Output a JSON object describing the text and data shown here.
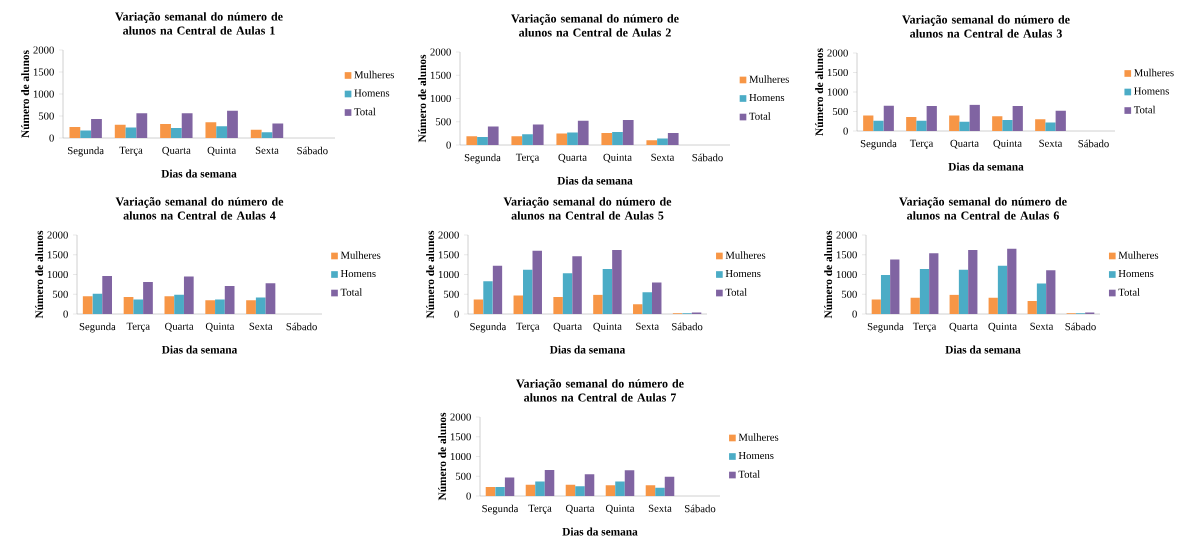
{
  "chart_data": [
    {
      "type": "bar",
      "title": "Variação semanal do número de alunos na Central de Aulas 1",
      "xlabel": "Dias da semana",
      "ylabel": "Número de alunos",
      "categories": [
        "Segunda",
        "Terça",
        "Quarta",
        "Quinta",
        "Sexta",
        "Sábado"
      ],
      "ylim": [
        0,
        2000
      ],
      "yticks": [
        0,
        500,
        1000,
        1500,
        2000
      ],
      "legend": "right",
      "series": [
        {
          "name": "Mulheres",
          "color": "#f79646",
          "values": [
            250,
            300,
            320,
            360,
            190,
            0
          ]
        },
        {
          "name": "Homens",
          "color": "#4bacc6",
          "values": [
            170,
            240,
            230,
            270,
            130,
            0
          ]
        },
        {
          "name": "Total",
          "color": "#8064a2",
          "values": [
            430,
            560,
            560,
            620,
            330,
            0
          ]
        }
      ]
    },
    {
      "type": "bar",
      "title": "Variação semanal do número de alunos na Central de Aulas 2",
      "xlabel": "Dias da semana",
      "ylabel": "Número de alunos",
      "categories": [
        "Segunda",
        "Terça",
        "Quarta",
        "Quinta",
        "Sexta",
        "Sábado"
      ],
      "ylim": [
        0,
        2000
      ],
      "yticks": [
        0,
        500,
        1000,
        1500,
        2000
      ],
      "legend": "right",
      "series": [
        {
          "name": "Mulheres",
          "color": "#f79646",
          "values": [
            190,
            190,
            250,
            260,
            100,
            0
          ]
        },
        {
          "name": "Homens",
          "color": "#4bacc6",
          "values": [
            170,
            230,
            270,
            280,
            140,
            0
          ]
        },
        {
          "name": "Total",
          "color": "#8064a2",
          "values": [
            400,
            440,
            520,
            540,
            260,
            0
          ]
        }
      ]
    },
    {
      "type": "bar",
      "title": "Variação semanal do número de alunos na Central de Aulas 3",
      "xlabel": "Dias da semana",
      "ylabel": "Número de alunos",
      "categories": [
        "Segunda",
        "Terça",
        "Quarta",
        "Quinta",
        "Sexta",
        "Sábado"
      ],
      "ylim": [
        0,
        2000
      ],
      "yticks": [
        0,
        500,
        1000,
        1500,
        2000
      ],
      "legend": "right",
      "series": [
        {
          "name": "Mulheres",
          "color": "#f79646",
          "values": [
            400,
            360,
            400,
            380,
            300,
            0
          ]
        },
        {
          "name": "Homens",
          "color": "#4bacc6",
          "values": [
            260,
            260,
            240,
            280,
            220,
            0
          ]
        },
        {
          "name": "Total",
          "color": "#8064a2",
          "values": [
            650,
            640,
            670,
            640,
            520,
            0
          ]
        }
      ]
    },
    {
      "type": "bar",
      "title": "Variação semanal do número de alunos na Central de Aulas 4",
      "xlabel": "Dias da semana",
      "ylabel": "Número de alunos",
      "categories": [
        "Segunda",
        "Terça",
        "Quarta",
        "Quinta",
        "Sexta",
        "Sábado"
      ],
      "ylim": [
        0,
        2000
      ],
      "yticks": [
        0,
        500,
        1000,
        1500,
        2000
      ],
      "legend": "right",
      "series": [
        {
          "name": "Mulheres",
          "color": "#f79646",
          "values": [
            450,
            430,
            450,
            350,
            350,
            0
          ]
        },
        {
          "name": "Homens",
          "color": "#4bacc6",
          "values": [
            510,
            370,
            490,
            370,
            420,
            0
          ]
        },
        {
          "name": "Total",
          "color": "#8064a2",
          "values": [
            960,
            810,
            950,
            710,
            780,
            0
          ]
        }
      ]
    },
    {
      "type": "bar",
      "title": "Variação semanal do número de alunos na Central de Aulas 5",
      "xlabel": "Dias da semana",
      "ylabel": "Número de alunos",
      "categories": [
        "Segunda",
        "Terça",
        "Quarta",
        "Quinta",
        "Sexta",
        "Sábado"
      ],
      "ylim": [
        0,
        2000
      ],
      "yticks": [
        0,
        500,
        1000,
        1500,
        2000
      ],
      "legend": "right",
      "series": [
        {
          "name": "Mulheres",
          "color": "#f79646",
          "values": [
            370,
            470,
            430,
            490,
            250,
            20
          ]
        },
        {
          "name": "Homens",
          "color": "#4bacc6",
          "values": [
            830,
            1120,
            1030,
            1140,
            550,
            20
          ]
        },
        {
          "name": "Total",
          "color": "#8064a2",
          "values": [
            1220,
            1600,
            1460,
            1620,
            800,
            40
          ]
        }
      ]
    },
    {
      "type": "bar",
      "title": "Variação semanal do número de alunos na Central de Aulas 6",
      "xlabel": "Dias da semana",
      "ylabel": "Número de alunos",
      "categories": [
        "Segunda",
        "Terça",
        "Quarta",
        "Quinta",
        "Sexta",
        "Sábado"
      ],
      "ylim": [
        0,
        2000
      ],
      "yticks": [
        0,
        500,
        1000,
        1500,
        2000
      ],
      "legend": "right",
      "series": [
        {
          "name": "Mulheres",
          "color": "#f79646",
          "values": [
            370,
            410,
            490,
            410,
            330,
            20
          ]
        },
        {
          "name": "Homens",
          "color": "#4bacc6",
          "values": [
            990,
            1140,
            1120,
            1220,
            770,
            20
          ]
        },
        {
          "name": "Total",
          "color": "#8064a2",
          "values": [
            1380,
            1540,
            1620,
            1650,
            1110,
            40
          ]
        }
      ]
    },
    {
      "type": "bar",
      "title": "Variação semanal do número de alunos na Central de Aulas 7",
      "xlabel": "Dias da semana",
      "ylabel": "Número de alunos",
      "categories": [
        "Segunda",
        "Terça",
        "Quarta",
        "Quinta",
        "Sexta",
        "Sábado"
      ],
      "ylim": [
        0,
        2000
      ],
      "yticks": [
        0,
        500,
        1000,
        1500,
        2000
      ],
      "legend": "right",
      "series": [
        {
          "name": "Mulheres",
          "color": "#f79646",
          "values": [
            230,
            290,
            290,
            270,
            270,
            0
          ]
        },
        {
          "name": "Homens",
          "color": "#4bacc6",
          "values": [
            230,
            370,
            250,
            370,
            210,
            0
          ]
        },
        {
          "name": "Total",
          "color": "#8064a2",
          "values": [
            470,
            660,
            550,
            650,
            490,
            0
          ]
        }
      ]
    }
  ]
}
